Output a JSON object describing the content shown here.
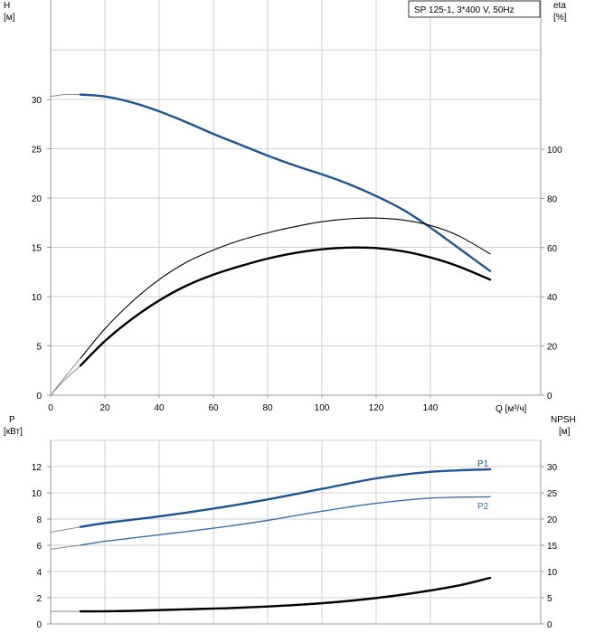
{
  "legend": {
    "text": "SP 125-1, 3*400 V, 50Hz"
  },
  "colors": {
    "blue": "#1f5494",
    "lightblue": "#3a6fb0",
    "black": "#000000",
    "grid": "#d2d2d2",
    "frame": "#9a9a9a"
  },
  "chart_data": [
    {
      "type": "line",
      "panel": "top",
      "ylabel": "H",
      "yunit": "[м]",
      "y2label": "eta",
      "y2unit": "[%]",
      "xlabel": "Q [м³/ч]",
      "xlim": [
        0,
        180
      ],
      "ylim": [
        0,
        37
      ],
      "y2lim": [
        0,
        150
      ],
      "xticks": [
        "0",
        "20",
        "40",
        "60",
        "80",
        "100",
        "120",
        "140"
      ],
      "yticks": [
        "0",
        "5",
        "10",
        "15",
        "20",
        "25",
        "30"
      ],
      "y2ticks": [
        "0",
        "20",
        "40",
        "60",
        "80",
        "100"
      ],
      "series": [
        {
          "key": "H",
          "axis": "left",
          "color": "#1f5494",
          "x": [
            11,
            20,
            30,
            40,
            50,
            60,
            70,
            80,
            90,
            100,
            110,
            120,
            130,
            140,
            150,
            162
          ],
          "y": [
            30.5,
            30.3,
            29.7,
            28.8,
            27.7,
            26.5,
            25.4,
            24.3,
            23.3,
            22.4,
            21.4,
            20.2,
            18.8,
            17.0,
            15.0,
            12.6
          ],
          "ext_x": [
            0,
            5,
            11
          ],
          "ext_y": [
            30.3,
            30.5,
            30.5
          ]
        },
        {
          "key": "eta_thin",
          "axis": "right",
          "color": "#000000",
          "x": [
            11,
            20,
            30,
            40,
            50,
            60,
            70,
            80,
            90,
            100,
            110,
            120,
            130,
            140,
            150,
            162
          ],
          "y": [
            15.0,
            27.0,
            38.0,
            47.0,
            54.0,
            59.0,
            63.0,
            66.0,
            68.5,
            70.5,
            71.7,
            72.0,
            71.2,
            69.0,
            65.0,
            57.5
          ],
          "ext_x": [
            0,
            5,
            11
          ],
          "ext_y": [
            0,
            7.0,
            15.0
          ]
        },
        {
          "key": "eta_thick",
          "axis": "right",
          "color": "#000000",
          "x": [
            11,
            20,
            30,
            40,
            50,
            60,
            70,
            80,
            90,
            100,
            110,
            120,
            130,
            140,
            150,
            162
          ],
          "y": [
            12.0,
            22.0,
            31.0,
            38.5,
            44.5,
            49.0,
            52.5,
            55.5,
            57.8,
            59.3,
            60.0,
            59.8,
            58.5,
            56.0,
            52.5,
            47.0
          ],
          "ext_x": [
            0,
            5,
            11
          ],
          "ext_y": [
            0,
            6.0,
            12.0
          ]
        }
      ]
    },
    {
      "type": "line",
      "panel": "bottom",
      "ylabel": "P",
      "yunit": "[кВт]",
      "y2label": "NPSH",
      "y2unit": "[м]",
      "xlim": [
        0,
        180
      ],
      "ylim": [
        0,
        14
      ],
      "y2lim": [
        0,
        35
      ],
      "yticks": [
        "0",
        "2",
        "4",
        "6",
        "8",
        "10",
        "12"
      ],
      "y2ticks": [
        "0",
        "5",
        "10",
        "15",
        "20",
        "25",
        "30"
      ],
      "series": [
        {
          "key": "P1",
          "name": "P1",
          "axis": "left",
          "color": "#1f5494",
          "x": [
            11,
            20,
            40,
            60,
            80,
            100,
            120,
            140,
            162
          ],
          "y": [
            7.4,
            7.7,
            8.2,
            8.8,
            9.5,
            10.3,
            11.1,
            11.6,
            11.8
          ],
          "ext_x": [
            0,
            11
          ],
          "ext_y": [
            7.0,
            7.4
          ]
        },
        {
          "key": "P2",
          "name": "P2",
          "axis": "left",
          "color": "#3a6fb0",
          "x": [
            11,
            20,
            40,
            60,
            80,
            100,
            120,
            140,
            162
          ],
          "y": [
            6.0,
            6.3,
            6.8,
            7.3,
            7.9,
            8.6,
            9.2,
            9.6,
            9.7
          ],
          "ext_x": [
            0,
            11
          ],
          "ext_y": [
            5.7,
            6.0
          ]
        },
        {
          "key": "NPSH",
          "axis": "right",
          "color": "#000000",
          "x": [
            11,
            30,
            50,
            70,
            90,
            110,
            130,
            150,
            162
          ],
          "y": [
            2.4,
            2.5,
            2.8,
            3.1,
            3.6,
            4.4,
            5.6,
            7.3,
            8.8
          ],
          "ext_x": [
            0,
            11
          ],
          "ext_y": [
            2.4,
            2.4
          ]
        }
      ]
    }
  ]
}
